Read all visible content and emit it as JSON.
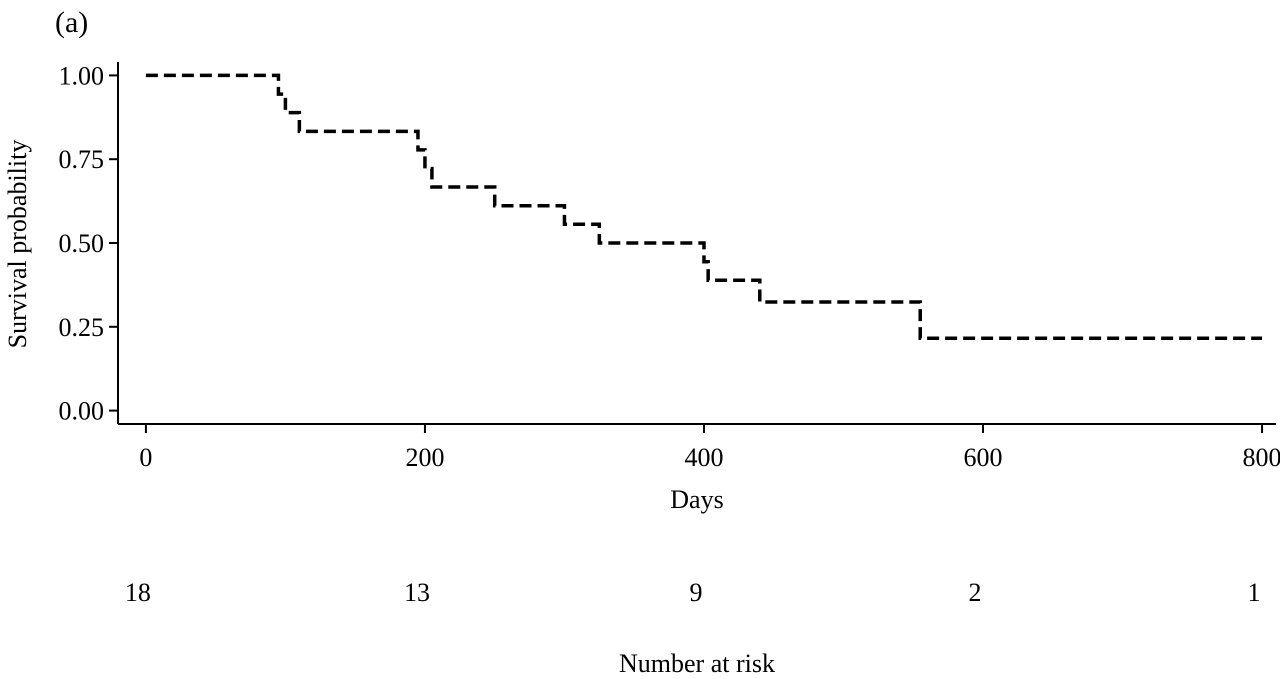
{
  "panel_label": "(a)",
  "chart_data": {
    "type": "line",
    "step": true,
    "line_style": "dashed",
    "line_color": "#000000",
    "xlabel": "Days",
    "ylabel": "Survival probability",
    "xlim": [
      -20,
      810
    ],
    "ylim": [
      -0.04,
      1.04
    ],
    "x_ticks": [
      0,
      200,
      400,
      600,
      800
    ],
    "y_ticks": [
      0.0,
      0.25,
      0.5,
      0.75,
      1.0
    ],
    "x_tick_labels": [
      "0",
      "200",
      "400",
      "600",
      "800"
    ],
    "y_tick_labels": [
      "0.00",
      "0.25",
      "0.50",
      "0.75",
      "1.00"
    ],
    "grid": false,
    "series": [
      {
        "x": [
          0,
          95,
          100,
          110,
          195,
          200,
          205,
          250,
          300,
          325,
          400,
          403,
          440,
          555,
          800
        ],
        "y": [
          1.0,
          0.944,
          0.889,
          0.833,
          0.778,
          0.722,
          0.667,
          0.611,
          0.556,
          0.5,
          0.444,
          0.389,
          0.324,
          0.216,
          0.216
        ]
      }
    ],
    "risk_table": {
      "title": "Number at risk",
      "times": [
        0,
        200,
        400,
        600,
        800
      ],
      "counts": [
        "18",
        "13",
        "9",
        "2",
        "1"
      ]
    }
  }
}
